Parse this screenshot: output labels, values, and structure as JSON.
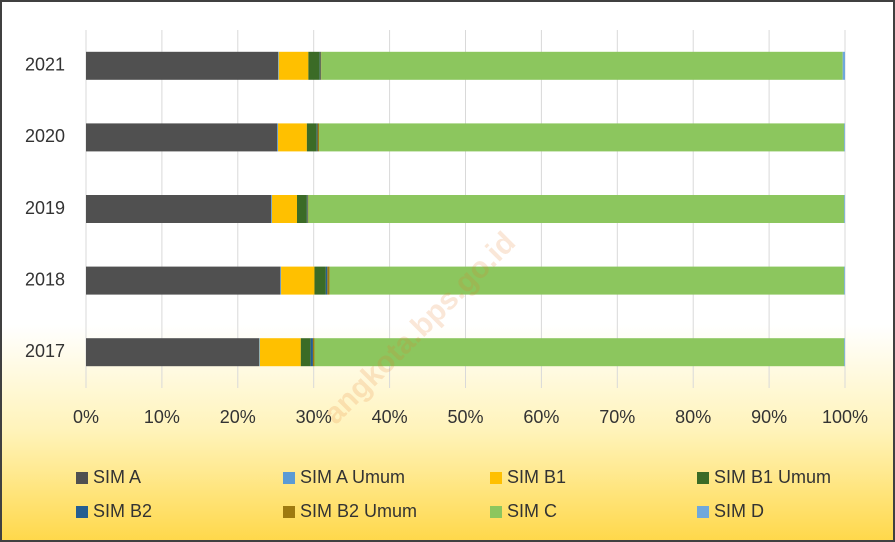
{
  "chart_data": {
    "type": "stacked-bar-horizontal",
    "watermark": "angkota.bps.go.id",
    "categories": [
      "2017",
      "2018",
      "2019",
      "2020",
      "2021"
    ],
    "series": [
      {
        "name": "SIM A",
        "color": "#505050",
        "values": [
          22.8,
          25.6,
          24.4,
          25.2,
          25.3
        ]
      },
      {
        "name": "SIM A Umum",
        "color": "#5b9bd5",
        "values": [
          0.1,
          0.1,
          0.1,
          0.1,
          0.1
        ]
      },
      {
        "name": "SIM B1",
        "color": "#ffc000",
        "values": [
          5.4,
          4.4,
          3.3,
          3.8,
          3.9
        ]
      },
      {
        "name": "SIM B1 Umum",
        "color": "#3b6b26",
        "values": [
          1.3,
          1.5,
          1.3,
          1.3,
          1.5
        ]
      },
      {
        "name": "SIM B2",
        "color": "#255e91",
        "values": [
          0.3,
          0.2,
          0.1,
          0.1,
          0.1
        ]
      },
      {
        "name": "SIM B2 Umum",
        "color": "#9e7a10",
        "values": [
          0.2,
          0.3,
          0.1,
          0.2,
          0.1
        ]
      },
      {
        "name": "SIM C",
        "color": "#8cc65e",
        "values": [
          69.8,
          67.8,
          70.6,
          69.2,
          68.7
        ]
      },
      {
        "name": "SIM D",
        "color": "#6fa8dc",
        "values": [
          0.1,
          0.1,
          0.1,
          0.1,
          0.3
        ]
      }
    ],
    "xlim": [
      0,
      100
    ],
    "xticks": [
      {
        "value": 0,
        "label": "0%"
      },
      {
        "value": 10,
        "label": "10%"
      },
      {
        "value": 20,
        "label": "20%"
      },
      {
        "value": 30,
        "label": "30%"
      },
      {
        "value": 40,
        "label": "40%"
      },
      {
        "value": 50,
        "label": "50%"
      },
      {
        "value": 60,
        "label": "60%"
      },
      {
        "value": 70,
        "label": "70%"
      },
      {
        "value": 80,
        "label": "80%"
      },
      {
        "value": 90,
        "label": "90%"
      },
      {
        "value": 100,
        "label": "100%"
      }
    ],
    "grid": true,
    "legend": "bottom"
  }
}
